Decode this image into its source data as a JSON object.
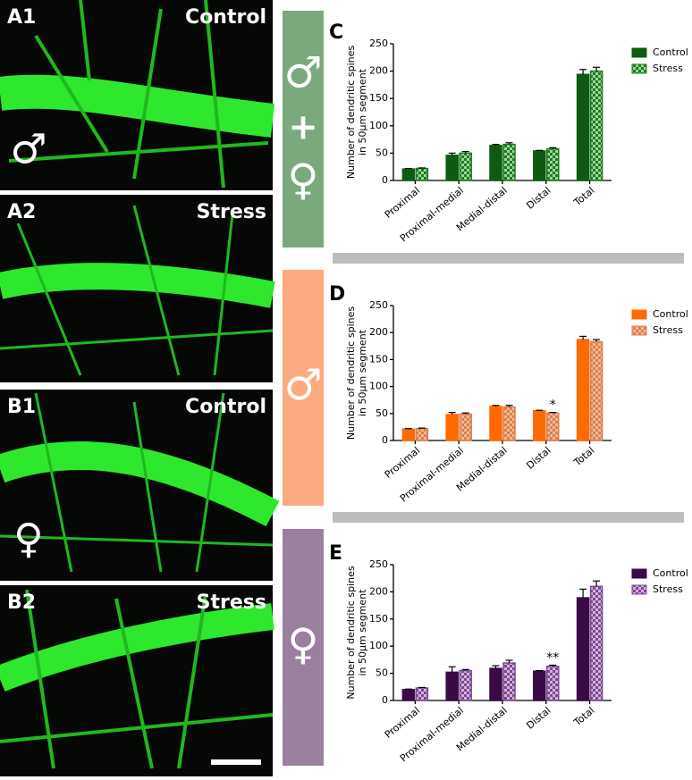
{
  "panels": [
    {
      "label": "A1",
      "condition": "Control",
      "symbol": "♂"
    },
    {
      "label": "A2",
      "condition": "Stress"
    },
    {
      "label": "B1",
      "condition": "Control",
      "symbol": "♀"
    },
    {
      "label": "B2",
      "condition": "Stress"
    }
  ],
  "sidebars": [
    {
      "symbols": [
        "♂",
        "+",
        "♀"
      ],
      "color": "#79a97c"
    },
    {
      "symbols": [
        "♂"
      ],
      "color": "#fcaa80"
    },
    {
      "symbols": [
        "♀"
      ],
      "color": "#9b7f9f"
    }
  ],
  "chart_data": [
    {
      "type": "bar",
      "label": "C",
      "ylabel": [
        "Number of dendritic spines",
        "in 50µm segment"
      ],
      "categories": [
        "Proximal",
        "Proximal-medial",
        "Medial-distal",
        "Distal",
        "Total"
      ],
      "ylim": [
        0,
        250
      ],
      "yticks": [
        0,
        50,
        100,
        150,
        200,
        250
      ],
      "series": [
        {
          "name": "Control",
          "color": "#0f5a12",
          "values": [
            21,
            46,
            64,
            54,
            194
          ],
          "errors": [
            1,
            4,
            2,
            1,
            9
          ]
        },
        {
          "name": "Stress",
          "color": "#1e7a22",
          "pattern_color": "#9fd69f",
          "values": [
            22,
            50,
            66,
            58,
            200
          ],
          "errors": [
            1,
            3,
            3,
            2,
            7
          ]
        }
      ]
    },
    {
      "type": "bar",
      "label": "D",
      "ylabel": [
        "Number of dendritic spines",
        "in 50µm segment"
      ],
      "categories": [
        "Proximal",
        "Proximal-medial",
        "Medial-distal",
        "Distal",
        "Total"
      ],
      "ylim": [
        0,
        250
      ],
      "yticks": [
        0,
        50,
        100,
        150,
        200,
        250
      ],
      "series": [
        {
          "name": "Control",
          "color": "#ff6a00",
          "values": [
            21,
            48,
            63,
            55,
            187
          ],
          "errors": [
            1,
            4,
            2,
            1,
            6
          ]
        },
        {
          "name": "Stress",
          "color": "#d9804f",
          "pattern_color": "#f2b896",
          "values": [
            22,
            49,
            62,
            51,
            183
          ],
          "errors": [
            1,
            2,
            3,
            1,
            4
          ],
          "significance": [
            null,
            null,
            null,
            "*",
            null
          ]
        }
      ]
    },
    {
      "type": "bar",
      "label": "E",
      "ylabel": [
        "Number of dendritic spines",
        "in 50µm segment"
      ],
      "categories": [
        "Proximal",
        "Proximal-medial",
        "Medial-distal",
        "Distal",
        "Total"
      ],
      "ylim": [
        0,
        250
      ],
      "yticks": [
        0,
        50,
        100,
        150,
        200,
        250
      ],
      "series": [
        {
          "name": "Control",
          "color": "#3a0a47",
          "values": [
            20,
            52,
            59,
            54,
            189
          ],
          "errors": [
            1,
            10,
            5,
            1,
            16
          ]
        },
        {
          "name": "Stress",
          "color": "#7a4a8c",
          "pattern_color": "#d6b2e2",
          "values": [
            23,
            55,
            69,
            63,
            210
          ],
          "errors": [
            1,
            2,
            5,
            2,
            10
          ],
          "significance": [
            null,
            null,
            null,
            "**",
            null
          ]
        }
      ]
    }
  ]
}
